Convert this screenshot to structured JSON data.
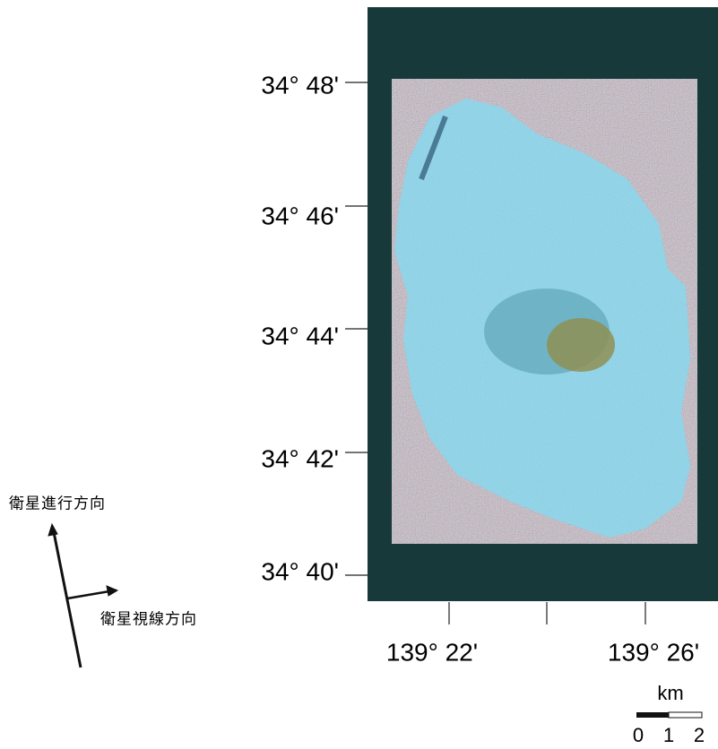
{
  "latitude_labels": [
    "34°  48'",
    "34°  46'",
    "34°  44'",
    "34°  42'",
    "34°  40'"
  ],
  "longitude_labels": [
    "139°  22'",
    "139°  26'"
  ],
  "direction_labels": {
    "flight": "衛星進行方向",
    "look": "衛星視線方向"
  },
  "scale_bar": {
    "unit": "km",
    "labels": [
      "0",
      "1",
      "2"
    ]
  }
}
